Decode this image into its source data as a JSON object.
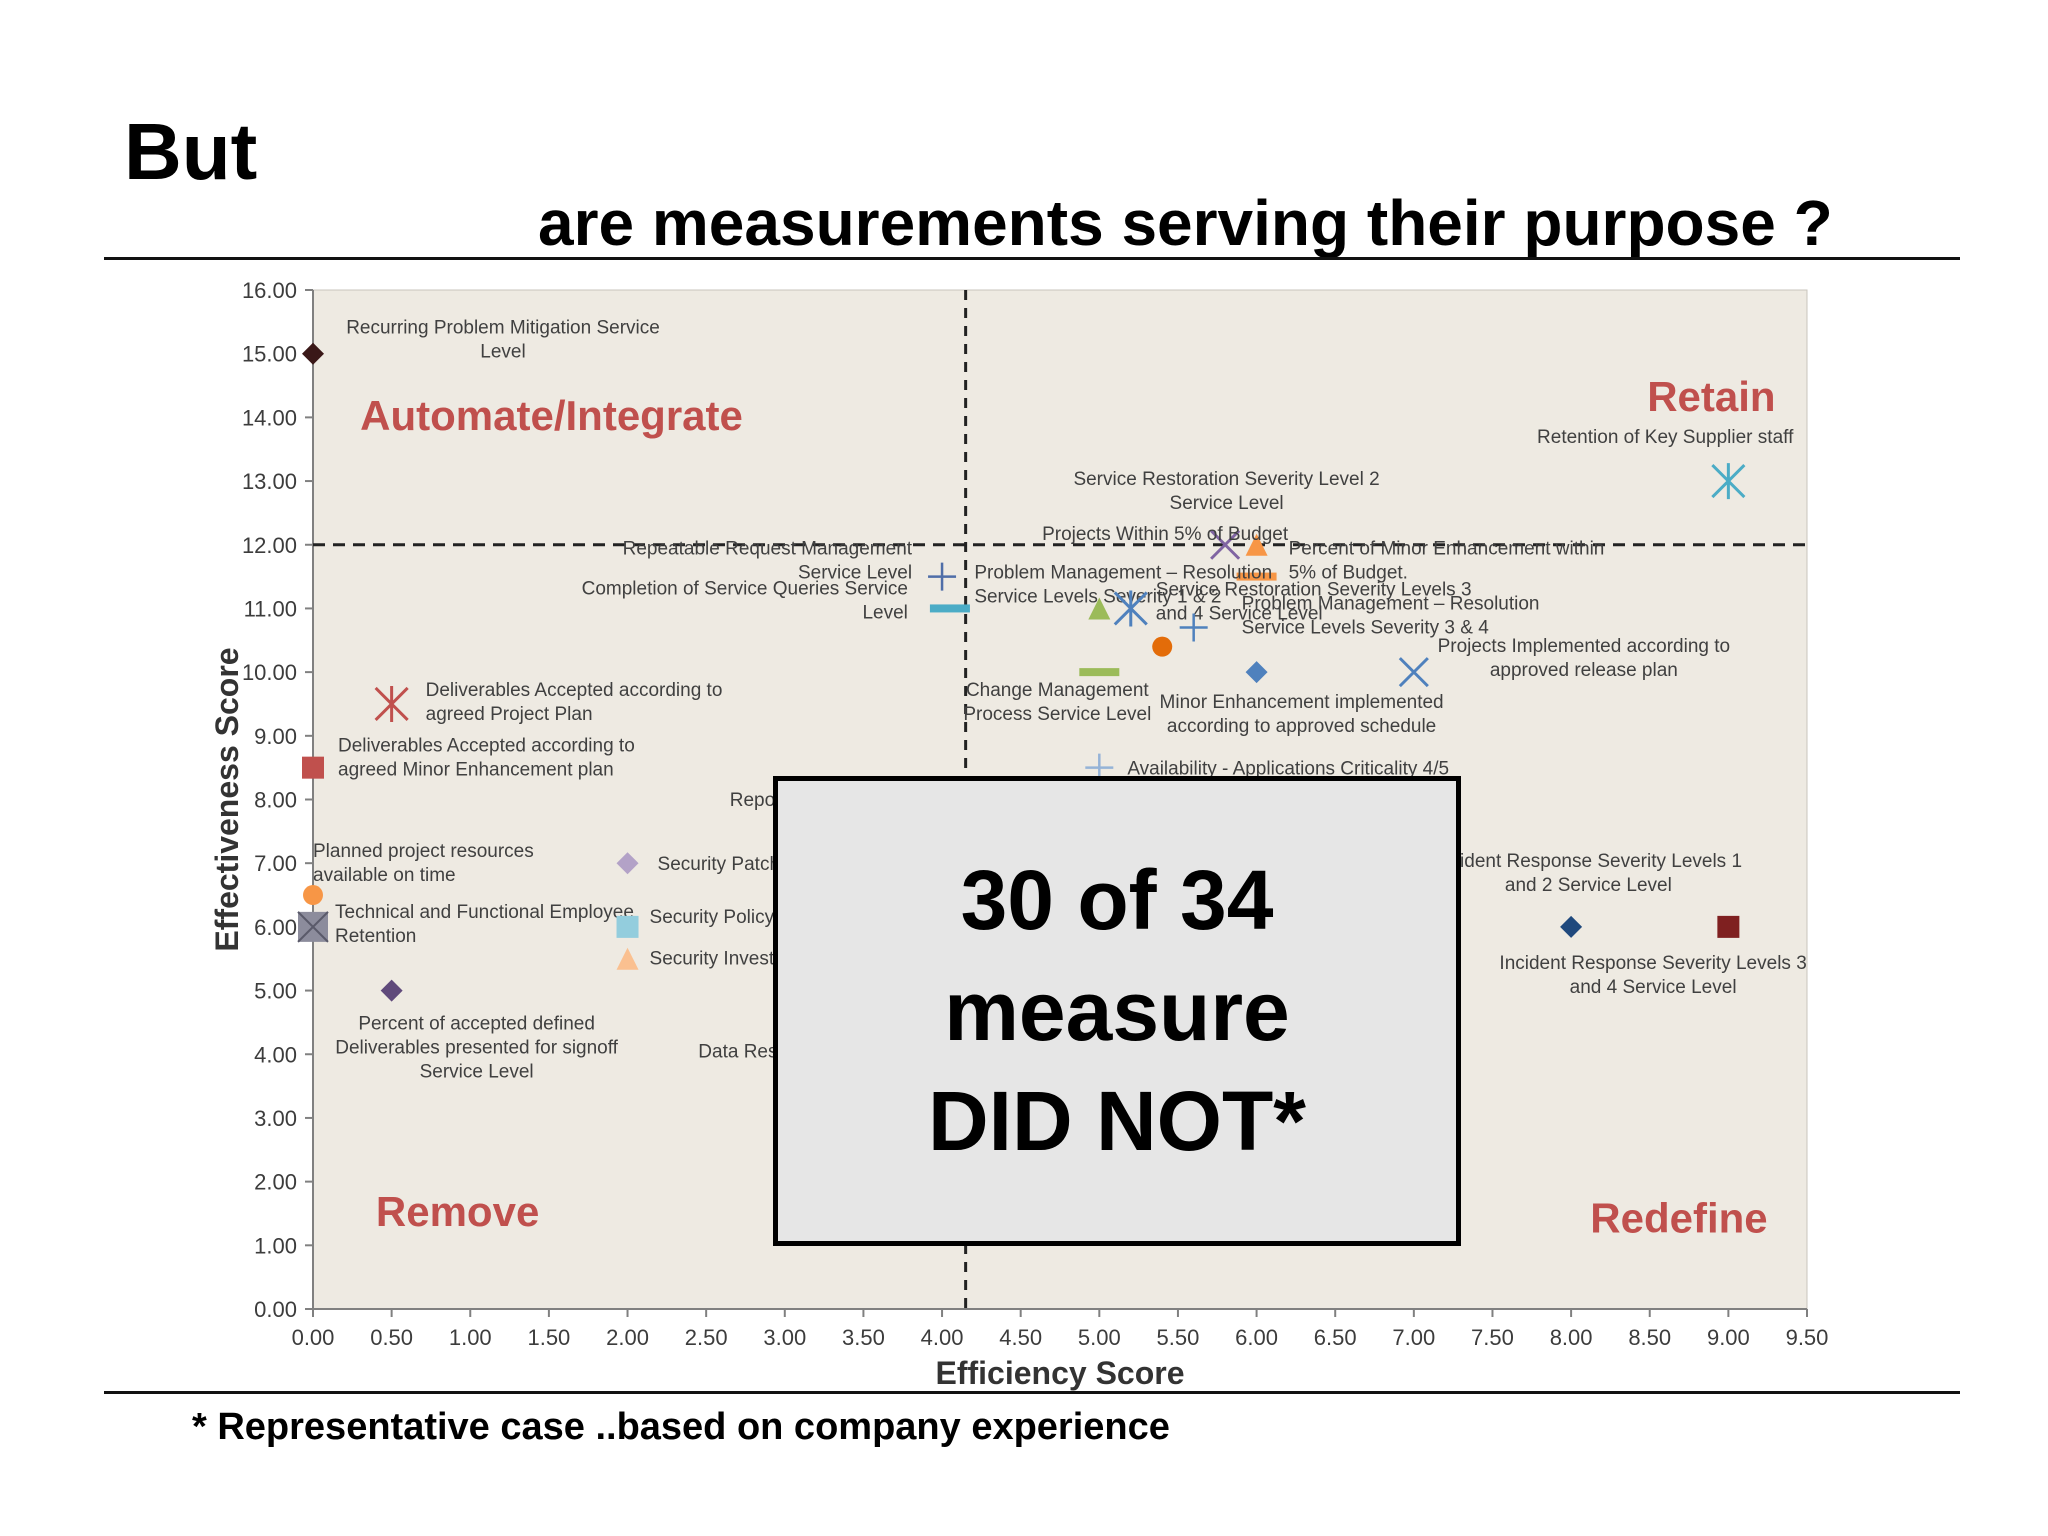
{
  "slide": {
    "title": "But",
    "subtitle": "are measurements serving their purpose ?",
    "footnote": "* Representative case  ..based on company experience",
    "overlay_lines": [
      "30 of 34",
      "measure",
      "DID NOT*"
    ]
  },
  "colors": {
    "plot_background": "#eeeae2",
    "quadrant_label": "#c0504d",
    "axis_text": "#3c3c3c"
  },
  "chart_data": {
    "type": "scatter",
    "xlabel": "Efficiency Score",
    "ylabel": "Effectiveness Score",
    "xlim": [
      0,
      9.5
    ],
    "ylim": [
      0,
      16
    ],
    "x_ticks": [
      "0.00",
      "0.50",
      "1.00",
      "1.50",
      "2.00",
      "2.50",
      "3.00",
      "3.50",
      "4.00",
      "4.50",
      "5.00",
      "5.50",
      "6.00",
      "6.50",
      "7.00",
      "7.50",
      "8.00",
      "8.50",
      "9.00",
      "9.50"
    ],
    "y_ticks": [
      "0.00",
      "1.00",
      "2.00",
      "3.00",
      "4.00",
      "5.00",
      "6.00",
      "7.00",
      "8.00",
      "9.00",
      "10.00",
      "11.00",
      "12.00",
      "13.00",
      "14.00",
      "15.00",
      "16.00"
    ],
    "grid": false,
    "threshold_lines": {
      "x": 4.15,
      "y": 12
    },
    "quadrant_labels": [
      {
        "text": "Automate/Integrate",
        "x": 0.3,
        "y": 13.8
      },
      {
        "text": "Retain",
        "x": 9.3,
        "y": 14.1
      },
      {
        "text": "Remove",
        "x": 0.4,
        "y": 1.3
      },
      {
        "text": "Redefine",
        "x": 9.25,
        "y": 1.2
      }
    ],
    "points": [
      {
        "x": 0.0,
        "y": 15.0,
        "marker": "diamond",
        "color": "#3a1818",
        "label": [
          "Recurring Problem Mitigation Service",
          "Level"
        ]
      },
      {
        "x": 9.0,
        "y": 13.0,
        "marker": "star",
        "color": "#4bacc6",
        "label": [
          "Retention of Key Supplier staff"
        ]
      },
      {
        "x": 6.0,
        "y": 12.0,
        "marker": "triangle",
        "color": "#f79646",
        "label": [
          "Service Restoration Severity Level 2",
          "Service Level"
        ]
      },
      {
        "x": 5.8,
        "y": 12.0,
        "marker": "x",
        "color": "#8064a2",
        "label": [
          "Projects Within 5% of Budget"
        ]
      },
      {
        "x": 6.0,
        "y": 11.5,
        "marker": "dash",
        "color": "#f79646",
        "label": [
          "Percent of Minor Enhancement within",
          "5% of Budget."
        ]
      },
      {
        "x": 4.0,
        "y": 11.5,
        "marker": "plus",
        "color": "#4f6ea8",
        "label": [
          "Repeatable Request Management",
          "Service Level"
        ]
      },
      {
        "x": 4.05,
        "y": 11.0,
        "marker": "dash",
        "color": "#4bacc6",
        "label": [
          "Completion of Service Queries Service",
          "Level"
        ]
      },
      {
        "x": 5.0,
        "y": 11.0,
        "marker": "triangle",
        "color": "#9bbb59",
        "label": [
          "Problem Management – Resolution",
          "Service Levels Severity 1 & 2"
        ]
      },
      {
        "x": 5.2,
        "y": 11.0,
        "marker": "star",
        "color": "#4f81bd",
        "label": [
          "Service Restoration Severity Levels 3",
          "and 4 Service Level"
        ]
      },
      {
        "x": 5.6,
        "y": 10.7,
        "marker": "plus",
        "color": "#4f81bd",
        "label": [
          "Problem Management – Resolution",
          "Service Levels Severity 3 & 4"
        ]
      },
      {
        "x": 5.4,
        "y": 10.4,
        "marker": "circle",
        "color": "#e36c09",
        "label": []
      },
      {
        "x": 5.0,
        "y": 10.0,
        "marker": "dash",
        "color": "#9bbb59",
        "label": [
          "Change Management",
          "Process Service Level"
        ]
      },
      {
        "x": 6.0,
        "y": 10.0,
        "marker": "diamond",
        "color": "#4f81bd",
        "label": [
          "Minor Enhancement implemented",
          "according to approved schedule"
        ]
      },
      {
        "x": 7.0,
        "y": 10.0,
        "marker": "x",
        "color": "#4f81bd",
        "label": [
          "Projects Implemented according to",
          "approved release plan"
        ]
      },
      {
        "x": 5.0,
        "y": 8.5,
        "marker": "plus",
        "color": "#95b3d7",
        "label": [
          "Availability - Applications Criticality 4/5"
        ]
      },
      {
        "x": 0.5,
        "y": 9.5,
        "marker": "star",
        "color": "#c0504d",
        "label": [
          "Deliverables Accepted according to",
          "agreed Project Plan"
        ]
      },
      {
        "x": 0.0,
        "y": 8.5,
        "marker": "square",
        "color": "#c0504d",
        "label": [
          "Deliverables Accepted according to",
          "agreed Minor Enhancement plan"
        ]
      },
      {
        "x": 0.0,
        "y": 6.5,
        "marker": "circle",
        "color": "#f79646",
        "label": [
          "Planned project resources",
          "available on time"
        ]
      },
      {
        "x": 0.0,
        "y": 6.0,
        "marker": "squarex",
        "color": "#8c8c9c",
        "label": [
          "Technical and Functional Employee",
          "Retention"
        ]
      },
      {
        "x": 0.5,
        "y": 5.0,
        "marker": "diamond",
        "color": "#604a7b",
        "label": [
          "Percent of accepted defined",
          "Deliverables presented for signoff",
          "Service Level"
        ]
      },
      {
        "x": 2.0,
        "y": 7.0,
        "marker": "diamond",
        "color": "#b3a2c7",
        "label": [
          "Security Patch"
        ]
      },
      {
        "x": 2.0,
        "y": 6.0,
        "marker": "square",
        "color": "#93cddd",
        "label": [
          "Security Policy"
        ]
      },
      {
        "x": 2.0,
        "y": 5.5,
        "marker": "triangle",
        "color": "#fac090",
        "label": [
          "Security Invest"
        ]
      },
      {
        "x": 8.0,
        "y": 6.0,
        "marker": "diamond",
        "color": "#1f497d",
        "label": [
          "Incident Response Severity Levels 3",
          "and 4 Service Level"
        ]
      },
      {
        "x": 9.0,
        "y": 6.0,
        "marker": "square",
        "color": "#7f2020",
        "label": [
          "Incident Response Severity Levels 1",
          "and 2 Service Level"
        ]
      }
    ],
    "partial_labels": [
      {
        "text": "Repor",
        "x": 2.65,
        "y": 7.9
      },
      {
        "text": "Data Reste",
        "x": 2.45,
        "y": 3.95
      }
    ]
  }
}
